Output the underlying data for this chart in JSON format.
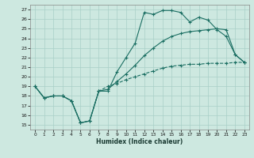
{
  "xlabel": "Humidex (Indice chaleur)",
  "bg_color": "#cde8e0",
  "grid_color": "#a8cfc7",
  "line_color": "#1a6e62",
  "xlim": [
    -0.5,
    23.5
  ],
  "ylim": [
    14.5,
    27.5
  ],
  "xticks": [
    0,
    1,
    2,
    3,
    4,
    5,
    6,
    7,
    8,
    9,
    10,
    11,
    12,
    13,
    14,
    15,
    16,
    17,
    18,
    19,
    20,
    21,
    22,
    23
  ],
  "yticks": [
    15,
    16,
    17,
    18,
    19,
    20,
    21,
    22,
    23,
    24,
    25,
    26,
    27
  ],
  "line1_x": [
    0,
    1,
    2,
    3,
    4,
    5,
    6,
    7,
    8,
    9,
    10,
    11,
    12,
    13,
    14,
    15,
    16,
    17,
    18,
    19,
    20,
    21,
    22,
    23
  ],
  "line1_y": [
    19.0,
    17.8,
    18.0,
    18.0,
    17.5,
    15.2,
    15.4,
    18.5,
    18.5,
    20.5,
    22.0,
    23.5,
    26.7,
    26.5,
    26.9,
    26.9,
    26.7,
    25.7,
    26.2,
    25.9,
    24.9,
    24.2,
    22.3,
    21.5
  ],
  "line2_x": [
    0,
    1,
    2,
    3,
    4,
    5,
    6,
    7,
    8,
    9,
    10,
    11,
    12,
    13,
    14,
    15,
    16,
    17,
    18,
    19,
    20,
    21,
    22,
    23
  ],
  "line2_y": [
    19.0,
    17.8,
    18.0,
    18.0,
    17.5,
    15.2,
    15.4,
    18.5,
    18.7,
    19.5,
    20.3,
    21.2,
    22.2,
    23.0,
    23.7,
    24.2,
    24.5,
    24.7,
    24.8,
    24.9,
    25.0,
    24.9,
    22.3,
    21.5
  ],
  "line3_x": [
    0,
    1,
    2,
    3,
    4,
    5,
    6,
    7,
    8,
    9,
    10,
    11,
    12,
    13,
    14,
    15,
    16,
    17,
    18,
    19,
    20,
    21,
    22,
    23
  ],
  "line3_y": [
    19.0,
    17.8,
    18.0,
    18.0,
    17.5,
    15.2,
    15.4,
    18.5,
    19.0,
    19.3,
    19.7,
    20.0,
    20.3,
    20.6,
    20.9,
    21.1,
    21.2,
    21.3,
    21.3,
    21.4,
    21.4,
    21.4,
    21.5,
    21.5
  ]
}
